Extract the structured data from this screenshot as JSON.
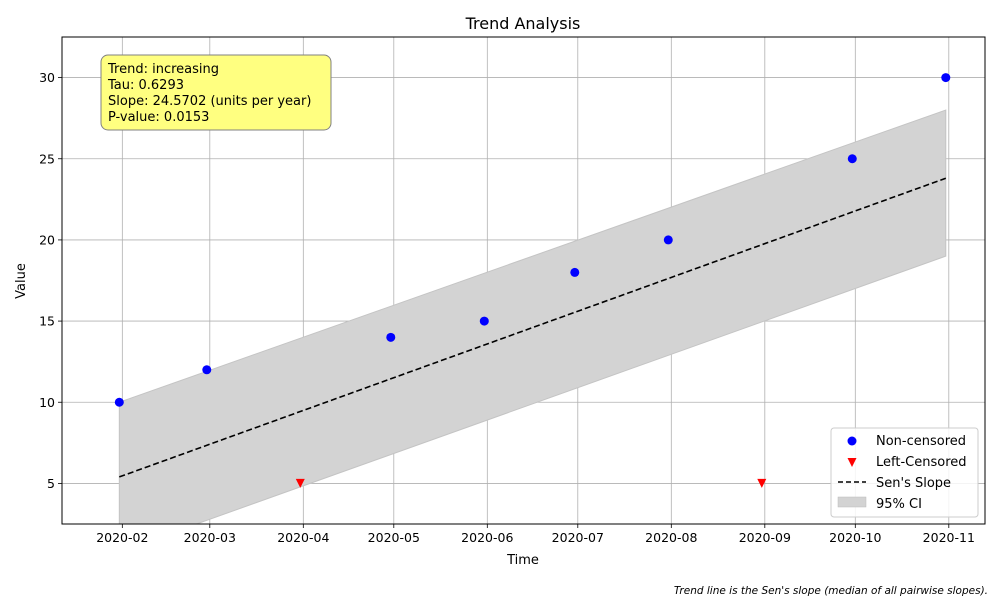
{
  "chart_data": {
    "type": "scatter",
    "title": "Trend Analysis",
    "xlabel": "Time",
    "ylabel": "Value",
    "x_ticks": [
      "2020-02",
      "2020-03",
      "2020-04",
      "2020-05",
      "2020-06",
      "2020-07",
      "2020-08",
      "2020-09",
      "2020-10",
      "2020-11"
    ],
    "y_ticks": [
      5,
      10,
      15,
      20,
      25,
      30
    ],
    "xlim": [
      "2020-01-12",
      "2020-11-13"
    ],
    "ylim": [
      2.5,
      32.5
    ],
    "grid": true,
    "legend_position": "bottom-right",
    "series": [
      {
        "name": "Non-censored",
        "kind": "scatter",
        "marker": "circle",
        "color": "#0000ff",
        "points": [
          {
            "x": "2020-01-31",
            "y": 10
          },
          {
            "x": "2020-02-29",
            "y": 12
          },
          {
            "x": "2020-04-30",
            "y": 14
          },
          {
            "x": "2020-05-31",
            "y": 15
          },
          {
            "x": "2020-06-30",
            "y": 18
          },
          {
            "x": "2020-07-31",
            "y": 20
          },
          {
            "x": "2020-09-30",
            "y": 25
          },
          {
            "x": "2020-10-31",
            "y": 30
          }
        ]
      },
      {
        "name": "Left-Censored",
        "kind": "scatter",
        "marker": "triangle-down",
        "color": "#ff0000",
        "points": [
          {
            "x": "2020-03-31",
            "y": 5
          },
          {
            "x": "2020-08-31",
            "y": 5
          }
        ]
      },
      {
        "name": "Sen's Slope",
        "kind": "line",
        "style": "dashed",
        "color": "#000000",
        "points": [
          {
            "x": "2020-01-31",
            "y": 5.4
          },
          {
            "x": "2020-10-31",
            "y": 23.8
          }
        ]
      },
      {
        "name": "95% CI",
        "kind": "band",
        "color": "#d3d3d3",
        "points": [
          {
            "x": "2020-01-31",
            "lower": 0.8,
            "upper": 10.0
          },
          {
            "x": "2020-10-31",
            "lower": 19.0,
            "upper": 28.0
          }
        ]
      }
    ],
    "stats_box": {
      "lines": [
        "Trend: increasing",
        "Tau: 0.6293",
        "Slope: 24.5702 (units per year)",
        "P-value: 0.0153"
      ],
      "background": "#ffff80"
    },
    "footnote": "Trend line is the Sen's slope (median of all pairwise slopes)."
  }
}
